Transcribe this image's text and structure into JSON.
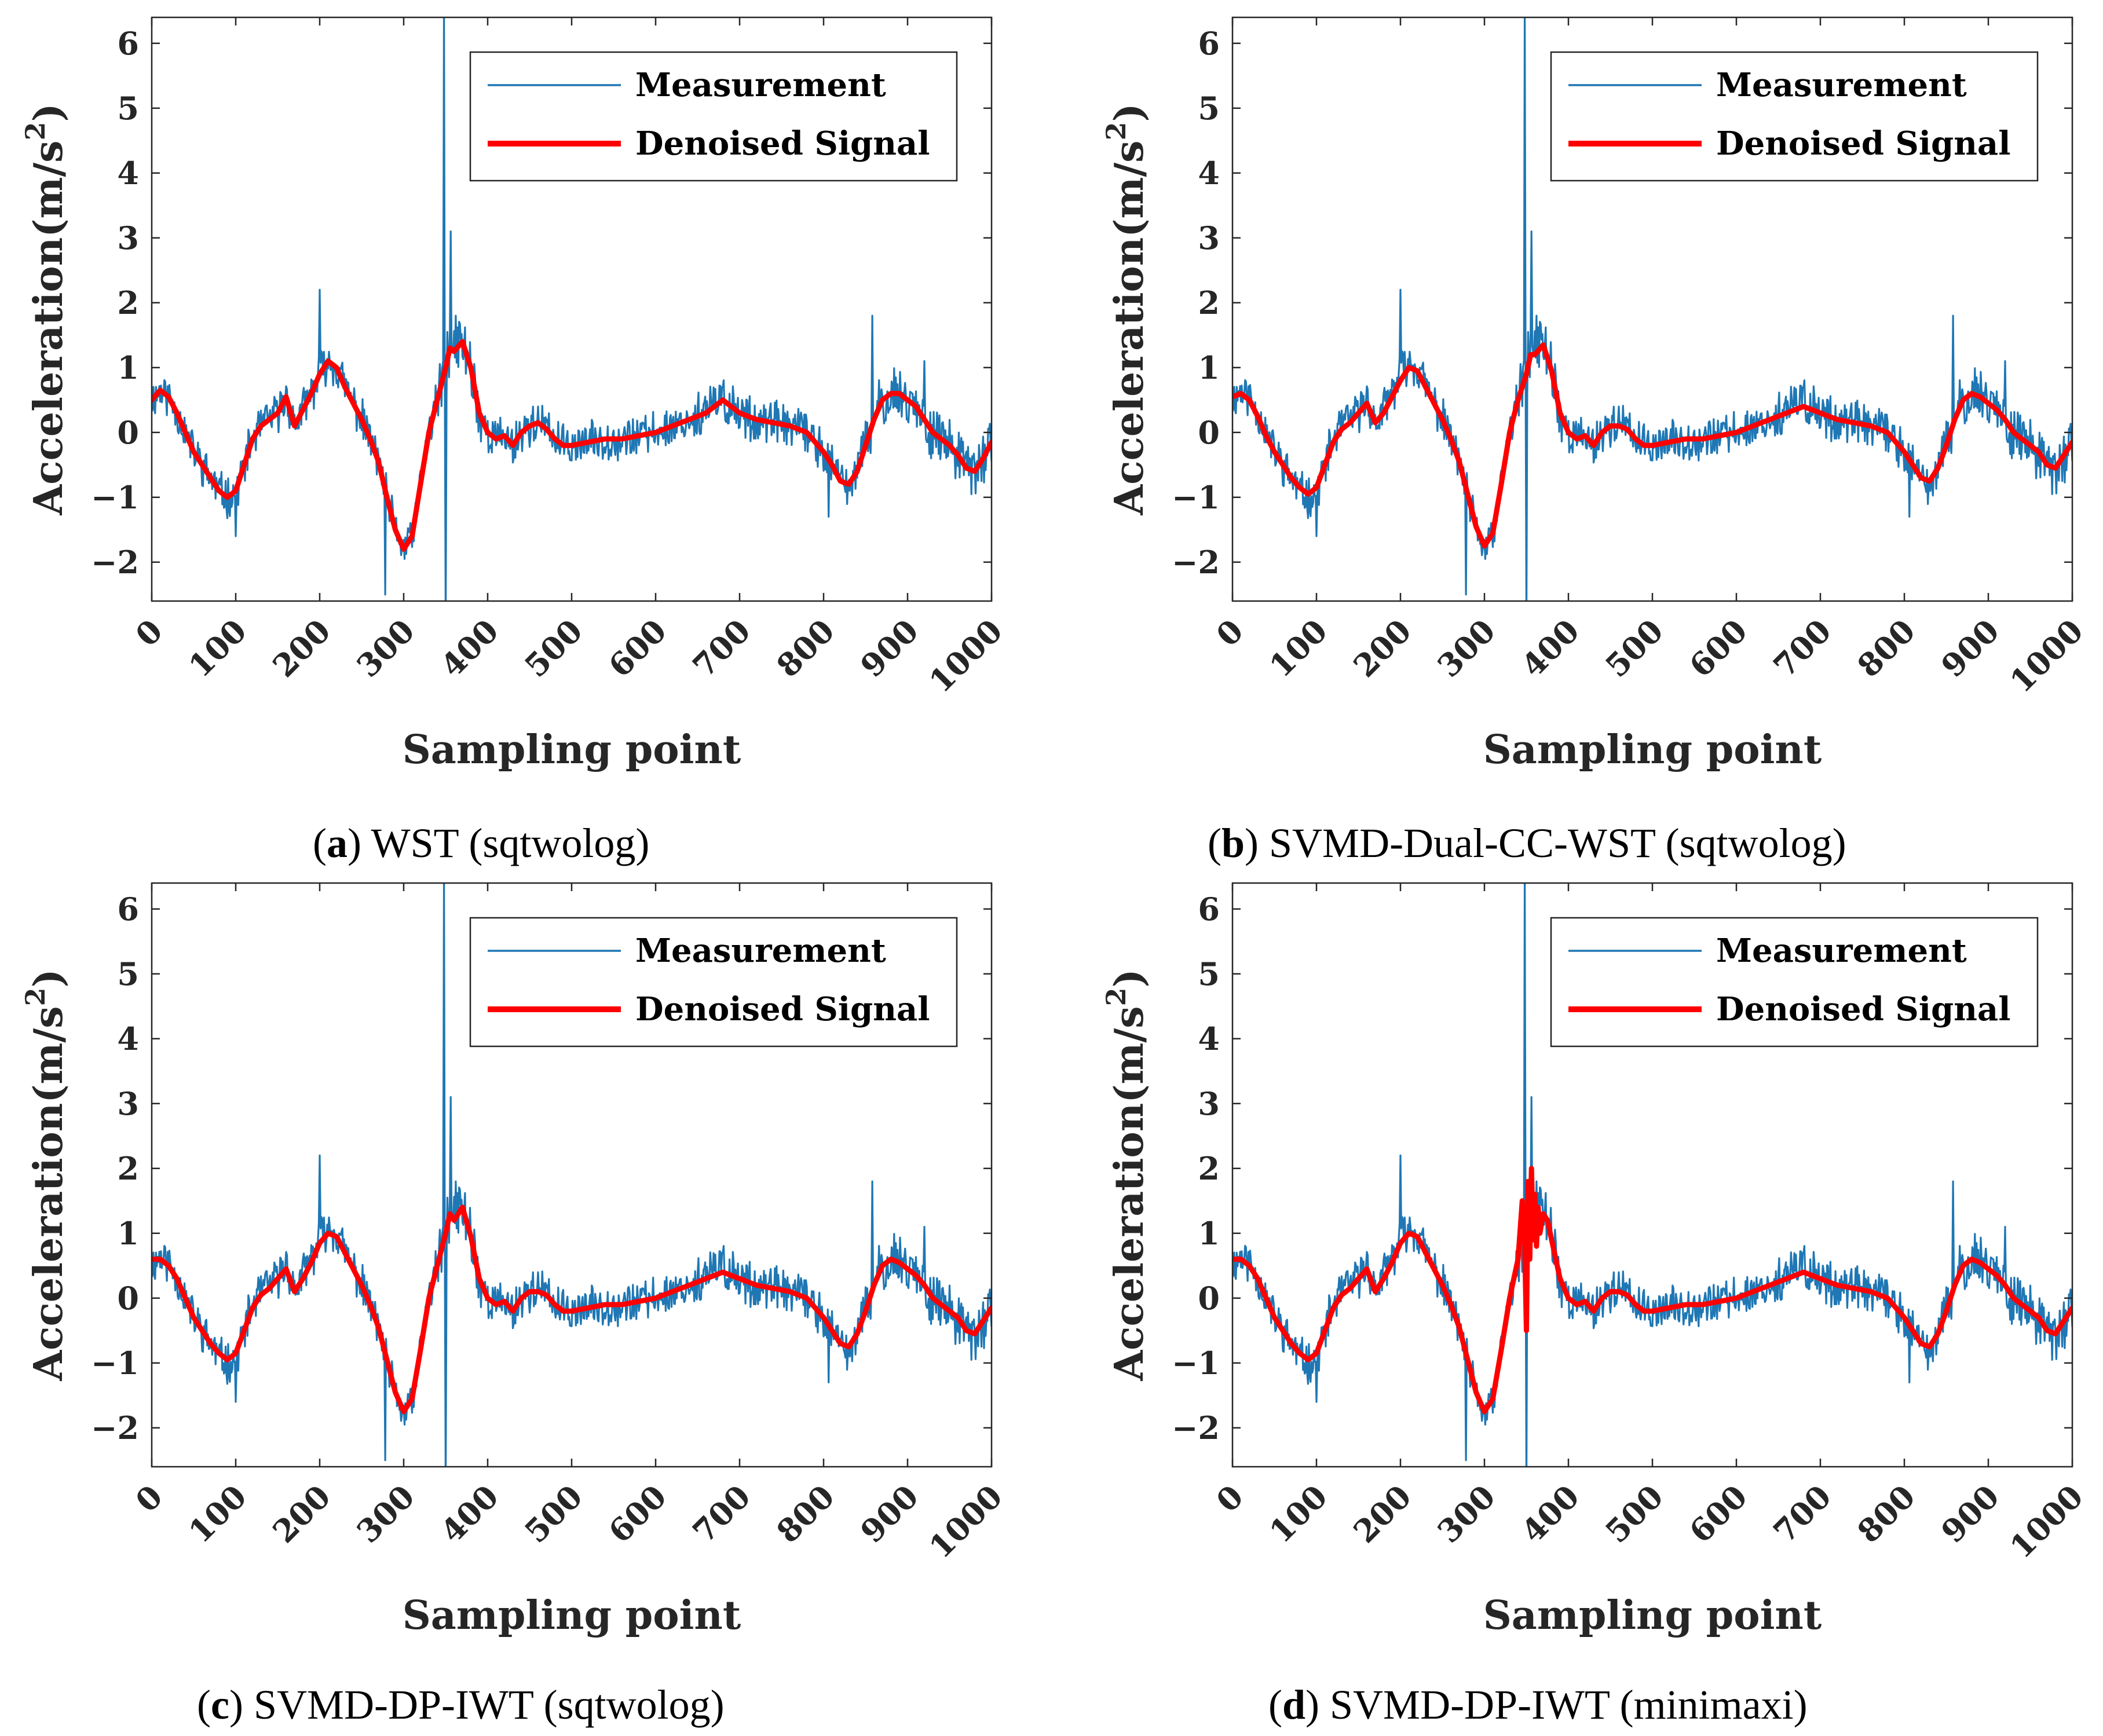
{
  "colors": {
    "measurement": "#1f77b4",
    "denoised": "#ff0000",
    "axis": "#262626",
    "grid": "#e6e6e6"
  },
  "chart_data": [
    {
      "type": "line",
      "panel": "a",
      "caption": {
        "letter": "a",
        "open": "(",
        "close": ")",
        "text": " WST (sqtwolog)"
      },
      "xlabel": "Sampling point",
      "ylabel": "Acceleration(m/s",
      "ylabel_sup": "2",
      "ylabel_close": ")",
      "xlim": [
        0,
        1000
      ],
      "ylim": [
        -2.6,
        6.4
      ],
      "xticks": [
        "0",
        "100",
        "200",
        "300",
        "400",
        "500",
        "600",
        "700",
        "800",
        "900",
        "1000"
      ],
      "yticks": [
        "−2",
        "−1",
        "0",
        "1",
        "2",
        "3",
        "4",
        "5",
        "6"
      ],
      "legend": {
        "position": "top-right",
        "entries": [
          "Measurement",
          "Denoised Signal"
        ]
      },
      "series": [
        {
          "name": "Measurement",
          "seed": 11
        },
        {
          "name": "Denoised Signal",
          "variant": "smooth",
          "x": [
            0,
            10,
            20,
            30,
            40,
            50,
            60,
            70,
            80,
            90,
            100,
            110,
            120,
            130,
            140,
            150,
            160,
            170,
            180,
            190,
            200,
            210,
            220,
            230,
            240,
            250,
            260,
            270,
            280,
            290,
            300,
            310,
            320,
            330,
            340,
            350,
            355,
            360,
            370,
            380,
            390,
            400,
            410,
            420,
            430,
            440,
            450,
            460,
            470,
            480,
            490,
            500,
            520,
            540,
            560,
            580,
            600,
            620,
            640,
            660,
            680,
            700,
            720,
            740,
            760,
            780,
            800,
            810,
            820,
            830,
            840,
            850,
            860,
            870,
            880,
            890,
            900,
            910,
            920,
            930,
            940,
            950,
            960,
            970,
            980,
            990,
            1000
          ],
          "y": [
            0.5,
            0.65,
            0.55,
            0.3,
            0.0,
            -0.3,
            -0.5,
            -0.7,
            -0.9,
            -1.0,
            -0.9,
            -0.5,
            -0.1,
            0.1,
            0.2,
            0.3,
            0.55,
            0.1,
            0.35,
            0.6,
            0.9,
            1.1,
            1.0,
            0.7,
            0.45,
            0.2,
            -0.1,
            -0.45,
            -1.0,
            -1.5,
            -1.8,
            -1.6,
            -0.8,
            0.0,
            0.5,
            1.0,
            1.3,
            1.25,
            1.4,
            1.0,
            0.3,
            0.0,
            -0.1,
            -0.05,
            -0.2,
            0.0,
            0.1,
            0.15,
            0.05,
            -0.1,
            -0.2,
            -0.2,
            -0.15,
            -0.1,
            -0.1,
            -0.05,
            0.0,
            0.1,
            0.2,
            0.3,
            0.5,
            0.3,
            0.2,
            0.15,
            0.1,
            0.0,
            -0.3,
            -0.5,
            -0.75,
            -0.8,
            -0.6,
            -0.2,
            0.2,
            0.5,
            0.6,
            0.6,
            0.5,
            0.4,
            0.2,
            0.0,
            -0.1,
            -0.2,
            -0.35,
            -0.55,
            -0.6,
            -0.4,
            -0.15
          ]
        }
      ]
    },
    {
      "type": "line",
      "panel": "b",
      "caption": {
        "letter": "b",
        "open": "(",
        "close": ")",
        "text": " SVMD-Dual-CC-WST (sqtwolog)"
      },
      "xlabel": "Sampling point",
      "ylabel": "Acceleration(m/s",
      "ylabel_sup": "2",
      "ylabel_close": ")",
      "xlim": [
        0,
        1000
      ],
      "ylim": [
        -2.6,
        6.4
      ],
      "xticks": [
        "0",
        "100",
        "200",
        "300",
        "400",
        "500",
        "600",
        "700",
        "800",
        "900",
        "1000"
      ],
      "yticks": [
        "−2",
        "−1",
        "0",
        "1",
        "2",
        "3",
        "4",
        "5",
        "6"
      ],
      "legend": {
        "position": "top-right",
        "entries": [
          "Measurement",
          "Denoised Signal"
        ]
      },
      "series": [
        {
          "name": "Measurement",
          "seed": 11
        },
        {
          "name": "Denoised Signal",
          "variant": "smooth",
          "x": [
            0,
            10,
            20,
            30,
            40,
            50,
            60,
            70,
            80,
            90,
            100,
            110,
            120,
            130,
            140,
            150,
            160,
            170,
            180,
            190,
            200,
            210,
            220,
            230,
            240,
            250,
            260,
            270,
            280,
            290,
            300,
            310,
            320,
            330,
            340,
            350,
            355,
            360,
            370,
            380,
            390,
            400,
            410,
            420,
            430,
            440,
            450,
            460,
            470,
            480,
            490,
            500,
            520,
            540,
            560,
            580,
            600,
            620,
            640,
            660,
            680,
            700,
            720,
            740,
            760,
            780,
            800,
            810,
            820,
            830,
            840,
            850,
            860,
            870,
            880,
            890,
            900,
            910,
            920,
            930,
            940,
            950,
            960,
            970,
            980,
            990,
            1000
          ],
          "y": [
            0.55,
            0.6,
            0.5,
            0.25,
            -0.05,
            -0.3,
            -0.5,
            -0.7,
            -0.85,
            -0.95,
            -0.85,
            -0.5,
            -0.15,
            0.05,
            0.15,
            0.3,
            0.45,
            0.15,
            0.3,
            0.55,
            0.8,
            1.0,
            0.95,
            0.7,
            0.45,
            0.2,
            -0.1,
            -0.45,
            -0.95,
            -1.45,
            -1.75,
            -1.55,
            -0.8,
            0.0,
            0.5,
            0.9,
            1.2,
            1.2,
            1.35,
            0.95,
            0.3,
            0.0,
            -0.1,
            -0.05,
            -0.2,
            0.0,
            0.1,
            0.1,
            0.05,
            -0.1,
            -0.2,
            -0.2,
            -0.15,
            -0.1,
            -0.1,
            -0.05,
            0.0,
            0.1,
            0.2,
            0.3,
            0.4,
            0.3,
            0.2,
            0.15,
            0.1,
            0.0,
            -0.3,
            -0.5,
            -0.7,
            -0.75,
            -0.55,
            -0.2,
            0.2,
            0.5,
            0.6,
            0.55,
            0.45,
            0.35,
            0.2,
            0.0,
            -0.1,
            -0.2,
            -0.3,
            -0.5,
            -0.55,
            -0.35,
            -0.15
          ]
        }
      ]
    },
    {
      "type": "line",
      "panel": "c",
      "caption": {
        "letter": "c",
        "open": "(",
        "close": ")",
        "text": " SVMD-DP-IWT (sqtwolog)"
      },
      "xlabel": "Sampling point",
      "ylabel": "Acceleration(m/s",
      "ylabel_sup": "2",
      "ylabel_close": ")",
      "xlim": [
        0,
        1000
      ],
      "ylim": [
        -2.6,
        6.4
      ],
      "xticks": [
        "0",
        "100",
        "200",
        "300",
        "400",
        "500",
        "600",
        "700",
        "800",
        "900",
        "1000"
      ],
      "yticks": [
        "−2",
        "−1",
        "0",
        "1",
        "2",
        "3",
        "4",
        "5",
        "6"
      ],
      "legend": {
        "position": "top-right",
        "entries": [
          "Measurement",
          "Denoised Signal"
        ]
      },
      "series": [
        {
          "name": "Measurement",
          "seed": 11
        },
        {
          "name": "Denoised Signal",
          "variant": "smooth",
          "x": [
            0,
            10,
            20,
            30,
            40,
            50,
            60,
            70,
            80,
            90,
            100,
            110,
            120,
            130,
            140,
            150,
            160,
            170,
            180,
            190,
            200,
            210,
            220,
            230,
            240,
            250,
            260,
            270,
            280,
            290,
            300,
            310,
            320,
            330,
            340,
            350,
            355,
            360,
            370,
            380,
            390,
            400,
            410,
            420,
            430,
            440,
            450,
            460,
            470,
            480,
            490,
            500,
            520,
            540,
            560,
            580,
            600,
            620,
            640,
            660,
            680,
            700,
            720,
            740,
            760,
            780,
            800,
            810,
            820,
            830,
            840,
            850,
            860,
            870,
            880,
            890,
            900,
            910,
            920,
            930,
            940,
            950,
            960,
            970,
            980,
            990,
            1000
          ],
          "y": [
            0.6,
            0.6,
            0.5,
            0.3,
            0.0,
            -0.3,
            -0.5,
            -0.7,
            -0.85,
            -0.95,
            -0.85,
            -0.5,
            -0.15,
            0.05,
            0.15,
            0.3,
            0.45,
            0.1,
            0.3,
            0.55,
            0.85,
            1.0,
            0.95,
            0.7,
            0.45,
            0.2,
            -0.1,
            -0.45,
            -0.95,
            -1.45,
            -1.75,
            -1.55,
            -0.8,
            0.0,
            0.5,
            1.0,
            1.3,
            1.2,
            1.4,
            0.95,
            0.3,
            0.0,
            -0.1,
            -0.05,
            -0.2,
            0.0,
            0.1,
            0.1,
            0.05,
            -0.1,
            -0.2,
            -0.2,
            -0.15,
            -0.1,
            -0.1,
            -0.05,
            0.0,
            0.1,
            0.2,
            0.3,
            0.4,
            0.3,
            0.2,
            0.15,
            0.1,
            0.0,
            -0.3,
            -0.5,
            -0.7,
            -0.75,
            -0.55,
            -0.2,
            0.2,
            0.5,
            0.6,
            0.55,
            0.45,
            0.35,
            0.2,
            0.0,
            -0.1,
            -0.2,
            -0.3,
            -0.5,
            -0.55,
            -0.35,
            -0.15
          ]
        }
      ]
    },
    {
      "type": "line",
      "panel": "d",
      "caption": {
        "letter": "d",
        "open": "(",
        "close": ")",
        "text": " SVMD-DP-IWT (minimaxi)"
      },
      "xlabel": "Sampling point",
      "ylabel": "Acceleration(m/s",
      "ylabel_sup": "2",
      "ylabel_close": ")",
      "xlim": [
        0,
        1000
      ],
      "ylim": [
        -2.6,
        6.4
      ],
      "xticks": [
        "0",
        "100",
        "200",
        "300",
        "400",
        "500",
        "600",
        "700",
        "800",
        "900",
        "1000"
      ],
      "yticks": [
        "−2",
        "−1",
        "0",
        "1",
        "2",
        "3",
        "4",
        "5",
        "6"
      ],
      "legend": {
        "position": "top-right",
        "entries": [
          "Measurement",
          "Denoised Signal"
        ]
      },
      "series": [
        {
          "name": "Measurement",
          "seed": 11
        },
        {
          "name": "Denoised Signal",
          "variant": "spiky",
          "x": [
            0,
            10,
            20,
            30,
            40,
            50,
            60,
            70,
            80,
            90,
            100,
            110,
            120,
            130,
            140,
            150,
            160,
            170,
            180,
            190,
            200,
            210,
            220,
            230,
            240,
            250,
            260,
            270,
            280,
            290,
            300,
            310,
            320,
            330,
            340,
            345,
            348,
            350,
            352,
            354,
            356,
            358,
            360,
            362,
            364,
            366,
            370,
            375,
            380,
            390,
            400,
            410,
            420,
            430,
            440,
            450,
            460,
            470,
            480,
            490,
            500,
            520,
            540,
            560,
            580,
            600,
            620,
            640,
            660,
            680,
            700,
            720,
            740,
            760,
            780,
            800,
            810,
            820,
            830,
            840,
            850,
            860,
            870,
            880,
            890,
            900,
            910,
            920,
            930,
            940,
            950,
            960,
            970,
            980,
            990,
            1000
          ],
          "y": [
            0.6,
            0.6,
            0.5,
            0.3,
            0.0,
            -0.3,
            -0.5,
            -0.7,
            -0.85,
            -0.95,
            -0.85,
            -0.5,
            -0.15,
            0.05,
            0.15,
            0.3,
            0.45,
            0.1,
            0.3,
            0.55,
            0.85,
            1.0,
            0.95,
            0.7,
            0.45,
            0.2,
            -0.1,
            -0.45,
            -0.95,
            -1.45,
            -1.75,
            -1.55,
            -0.8,
            0.0,
            0.6,
            1.5,
            0.8,
            -0.5,
            1.8,
            0.6,
            2.0,
            0.9,
            1.6,
            0.8,
            1.4,
            1.0,
            1.3,
            1.2,
            0.9,
            0.3,
            0.0,
            -0.1,
            -0.05,
            -0.2,
            0.0,
            0.1,
            0.1,
            0.05,
            -0.1,
            -0.2,
            -0.2,
            -0.15,
            -0.1,
            -0.1,
            -0.05,
            0.0,
            0.1,
            0.2,
            0.3,
            0.4,
            0.3,
            0.2,
            0.15,
            0.1,
            0.0,
            -0.3,
            -0.5,
            -0.7,
            -0.75,
            -0.55,
            -0.2,
            0.2,
            0.5,
            0.6,
            0.55,
            0.45,
            0.35,
            0.2,
            0.0,
            -0.1,
            -0.2,
            -0.3,
            -0.5,
            -0.55,
            -0.35,
            -0.15
          ]
        }
      ]
    }
  ]
}
